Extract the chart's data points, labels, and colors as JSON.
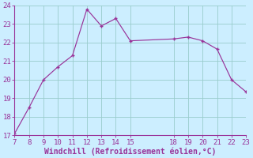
{
  "x": [
    7,
    8,
    9,
    10,
    11,
    12,
    13,
    14,
    15,
    18,
    19,
    20,
    21,
    22,
    23
  ],
  "y": [
    17.1,
    18.5,
    20.0,
    20.7,
    21.3,
    23.8,
    22.9,
    23.3,
    22.1,
    22.2,
    22.3,
    22.1,
    21.65,
    20.0,
    19.35
  ],
  "xlim": [
    7,
    23
  ],
  "ylim": [
    17,
    24
  ],
  "xticks": [
    7,
    8,
    9,
    10,
    11,
    12,
    13,
    14,
    15,
    18,
    19,
    20,
    21,
    22,
    23
  ],
  "yticks": [
    17,
    18,
    19,
    20,
    21,
    22,
    23,
    24
  ],
  "xlabel": "Windchill (Refroidissement éolien,°C)",
  "line_color": "#993399",
  "bg_color": "#cceeff",
  "grid_color": "#99cccc",
  "tick_color": "#993399",
  "label_color": "#993399",
  "tick_fontsize": 6.5,
  "xlabel_fontsize": 7.0
}
